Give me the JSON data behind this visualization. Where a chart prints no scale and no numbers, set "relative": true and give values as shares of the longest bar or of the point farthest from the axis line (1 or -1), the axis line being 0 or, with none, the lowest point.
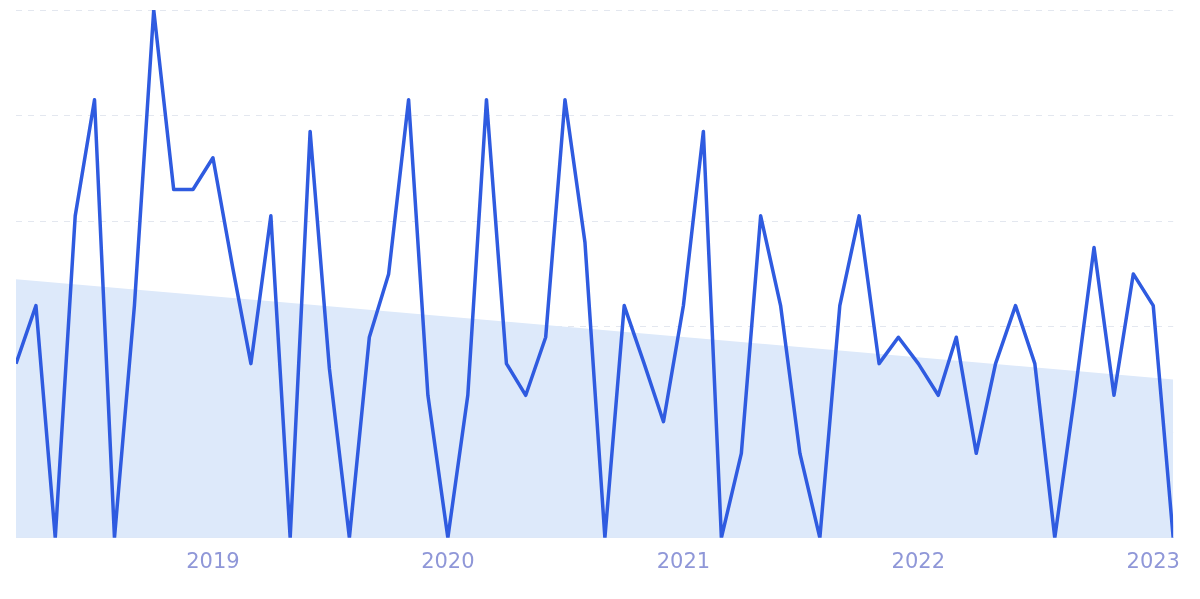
{
  "chart_data": {
    "type": "line",
    "relative": true,
    "grid": "y",
    "x": [
      "2018-03",
      "2018-04",
      "2018-05",
      "2018-06",
      "2018-07",
      "2018-08",
      "2018-09",
      "2018-10",
      "2018-11",
      "2018-12",
      "2019-01",
      "2019-02",
      "2019-03",
      "2019-04",
      "2019-05",
      "2019-06",
      "2019-07",
      "2019-08",
      "2019-09",
      "2019-10",
      "2019-11",
      "2019-12",
      "2020-01",
      "2020-02",
      "2020-03",
      "2020-04",
      "2020-05",
      "2020-06",
      "2020-07",
      "2020-08",
      "2020-09",
      "2020-10",
      "2020-11",
      "2020-12",
      "2021-01",
      "2021-02",
      "2021-03",
      "2021-04",
      "2021-05",
      "2021-06",
      "2021-07",
      "2021-08",
      "2021-09",
      "2021-10",
      "2021-11",
      "2021-12",
      "2022-01",
      "2022-02",
      "2022-03",
      "2022-04",
      "2022-05",
      "2022-06",
      "2022-07",
      "2022-08",
      "2022-09",
      "2022-10",
      "2022-11",
      "2022-12",
      "2023-01",
      "2023-02"
    ],
    "xlim": [
      "2018-03",
      "2023-02"
    ],
    "xticks": [
      "2019",
      "2020",
      "2021",
      "2022",
      "2023"
    ],
    "series": [
      {
        "type": "area",
        "color": "#dde9fa",
        "x": [
          "2018-03",
          "2023-02"
        ],
        "values": [
          0.49,
          0.3
        ]
      },
      {
        "type": "line",
        "color": "#2f5be0",
        "values": [
          0.33,
          0.44,
          0,
          0.61,
          0.83,
          0,
          0.44,
          1,
          0.66,
          0.66,
          0.72,
          0.51,
          0.33,
          0.61,
          0,
          0.77,
          0.32,
          0,
          0.38,
          0.5,
          0.83,
          0.27,
          0,
          0.27,
          0.83,
          0.33,
          0.27,
          0.38,
          0.83,
          0.56,
          0,
          0.44,
          0.33,
          0.22,
          0.44,
          0.77,
          0,
          0.16,
          0.61,
          0.44,
          0.16,
          0,
          0.44,
          0.61,
          0.33,
          0.38,
          0.33,
          0.27,
          0.38,
          0.16,
          0.33,
          0.44,
          0.33,
          0,
          0.27,
          0.55,
          0.27,
          0.5,
          0.44,
          0
        ]
      }
    ]
  }
}
